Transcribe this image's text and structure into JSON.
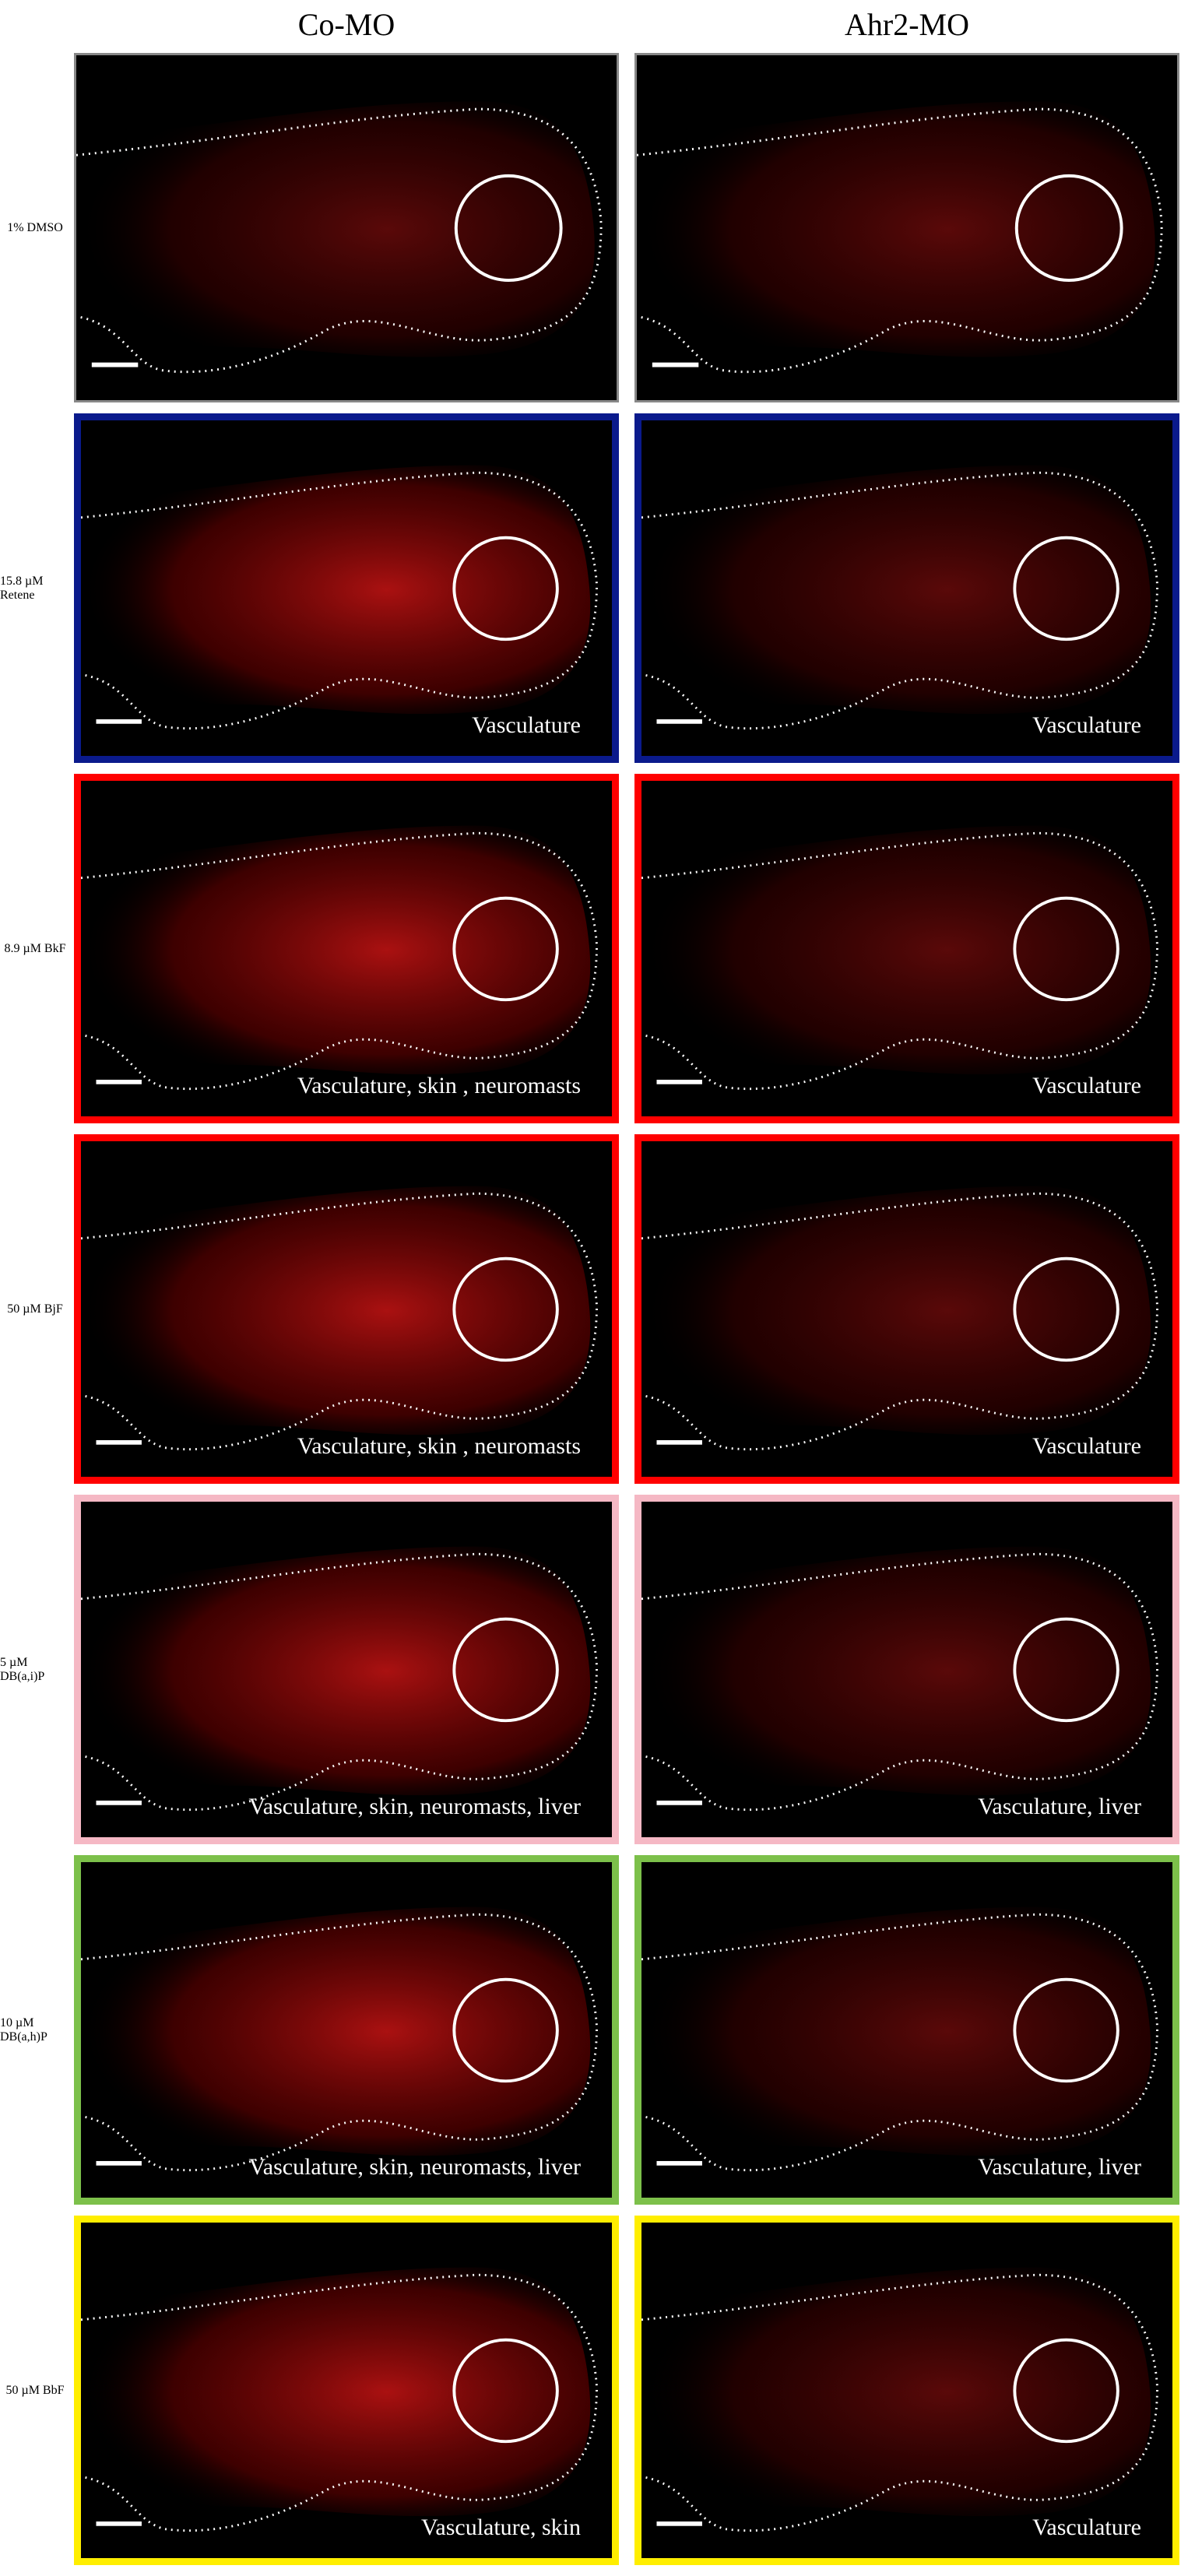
{
  "columns": [
    "Co-MO",
    "Ahr2-MO"
  ],
  "rows": [
    {
      "label": "1% DMSO"
    },
    {
      "label": "15.8 µM Retene",
      "captions": [
        "Vasculature",
        "Vasculature"
      ]
    },
    {
      "label": "8.9 µM BkF",
      "captions": [
        "Vasculature, skin , neuromasts",
        "Vasculature"
      ]
    },
    {
      "label": "50 µM BjF",
      "captions": [
        "Vasculature, skin , neuromasts",
        "Vasculature"
      ]
    },
    {
      "label": "5 µM DB(a,i)P",
      "captions": [
        "Vasculature, skin, neuromasts, liver",
        "Vasculature, liver"
      ]
    },
    {
      "label": "10 µM DB(a,h)P",
      "captions": [
        "Vasculature, skin, neuromasts, liver",
        "Vasculature, liver"
      ]
    },
    {
      "label": "50 µM BbF",
      "captions": [
        "Vasculature, skin",
        "Vasculature"
      ]
    }
  ]
}
